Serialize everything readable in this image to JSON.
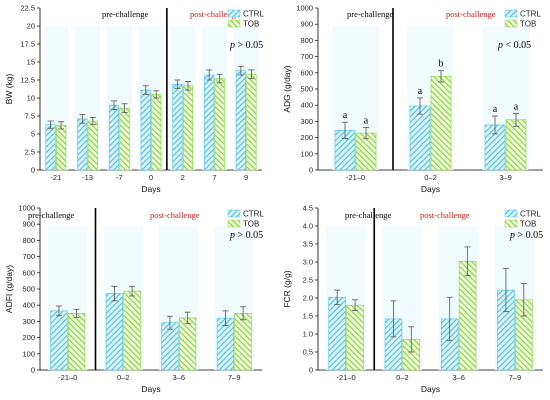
{
  "colors": {
    "ctrl": "#4fc3e0",
    "tob": "#8fd33c",
    "pre_label": "#000000",
    "post_label": "#cc2222",
    "axis": "#000000",
    "error": "#555555"
  },
  "legend": {
    "ctrl": "CTRL",
    "tob": "TOB"
  },
  "phase_labels": {
    "pre": "pre-challenge",
    "post": "post-challenge"
  },
  "chart_data": [
    {
      "id": "bw",
      "type": "bar",
      "ylabel": "BW (kg)",
      "xlabel": "Days",
      "ylim": [
        0,
        22.5
      ],
      "yticks": [
        "0",
        "2.5",
        "5",
        "7.5",
        "10",
        "12.5",
        "15",
        "17.5",
        "20",
        "22.5"
      ],
      "ytick_values": [
        0,
        2.5,
        5,
        7.5,
        10,
        12.5,
        15,
        17.5,
        20,
        22.5
      ],
      "categories": [
        "-21",
        "-13",
        "-7",
        "0",
        "2",
        "7",
        "9"
      ],
      "divider_after": 3,
      "p_text": "p > 0.05",
      "series": [
        {
          "name": "CTRL",
          "values": [
            6.3,
            7.1,
            9.0,
            11.1,
            11.9,
            13.2,
            13.8
          ],
          "errors": [
            0.5,
            0.6,
            0.6,
            0.6,
            0.6,
            0.7,
            0.6
          ]
        },
        {
          "name": "TOB",
          "values": [
            6.2,
            6.8,
            8.6,
            10.5,
            11.7,
            12.7,
            13.3
          ],
          "errors": [
            0.5,
            0.5,
            0.6,
            0.5,
            0.6,
            0.6,
            0.6
          ]
        }
      ],
      "sig_letters": []
    },
    {
      "id": "adg",
      "type": "bar",
      "ylabel": "ADG (g/day)",
      "xlabel": "Days",
      "ylim": [
        0,
        1000
      ],
      "yticks": [
        "0",
        "100",
        "200",
        "300",
        "400",
        "500",
        "600",
        "700",
        "800",
        "900",
        "1000"
      ],
      "ytick_values": [
        0,
        100,
        200,
        300,
        400,
        500,
        600,
        700,
        800,
        900,
        1000
      ],
      "categories": [
        "-21–0",
        "0–2",
        "3–9"
      ],
      "divider_after": 0,
      "p_text": "p < 0.05",
      "series": [
        {
          "name": "CTRL",
          "values": [
            245,
            395,
            278
          ],
          "errors": [
            50,
            50,
            55
          ]
        },
        {
          "name": "TOB",
          "values": [
            228,
            578,
            310
          ],
          "errors": [
            35,
            35,
            40
          ]
        }
      ],
      "sig_letters": [
        [
          "a",
          "a"
        ],
        [
          "a",
          "b"
        ],
        [
          "a",
          "a"
        ]
      ]
    },
    {
      "id": "adfi",
      "type": "bar",
      "ylabel": "ADFI (g/day)",
      "xlabel": "Days",
      "ylim": [
        0,
        1000
      ],
      "yticks": [
        "0",
        "100",
        "200",
        "300",
        "400",
        "500",
        "600",
        "700",
        "800",
        "900",
        "1000"
      ],
      "ytick_values": [
        0,
        100,
        200,
        300,
        400,
        500,
        600,
        700,
        800,
        900,
        1000
      ],
      "categories": [
        "-21–0",
        "0–2",
        "3–6",
        "7–9"
      ],
      "divider_after": 0,
      "p_text": "p > 0.05",
      "series": [
        {
          "name": "CTRL",
          "values": [
            365,
            472,
            292,
            320
          ],
          "errors": [
            30,
            45,
            40,
            45
          ]
        },
        {
          "name": "TOB",
          "values": [
            350,
            487,
            322,
            350
          ],
          "errors": [
            25,
            30,
            35,
            40
          ]
        }
      ],
      "sig_letters": []
    },
    {
      "id": "fcr",
      "type": "bar",
      "ylabel": "FCR (g/g)",
      "xlabel": "Days",
      "ylim": [
        0,
        4.5
      ],
      "yticks": [
        "0",
        "0.5",
        "1.0",
        "1.5",
        "2.0",
        "2.5",
        "3.0",
        "3.5",
        "4.0",
        "4.5"
      ],
      "ytick_values": [
        0,
        0.5,
        1.0,
        1.5,
        2.0,
        2.5,
        3.0,
        3.5,
        4.0,
        4.5
      ],
      "categories": [
        "-21–0",
        "0–2",
        "3–6",
        "7–9"
      ],
      "divider_after": 0,
      "p_text": "p > 0.05",
      "series": [
        {
          "name": "CTRL",
          "values": [
            2.02,
            1.42,
            1.42,
            2.22
          ],
          "errors": [
            0.2,
            0.5,
            0.6,
            0.6
          ]
        },
        {
          "name": "TOB",
          "values": [
            1.8,
            0.85,
            3.02,
            1.95
          ],
          "errors": [
            0.15,
            0.35,
            0.4,
            0.45
          ]
        }
      ],
      "sig_letters": []
    }
  ]
}
